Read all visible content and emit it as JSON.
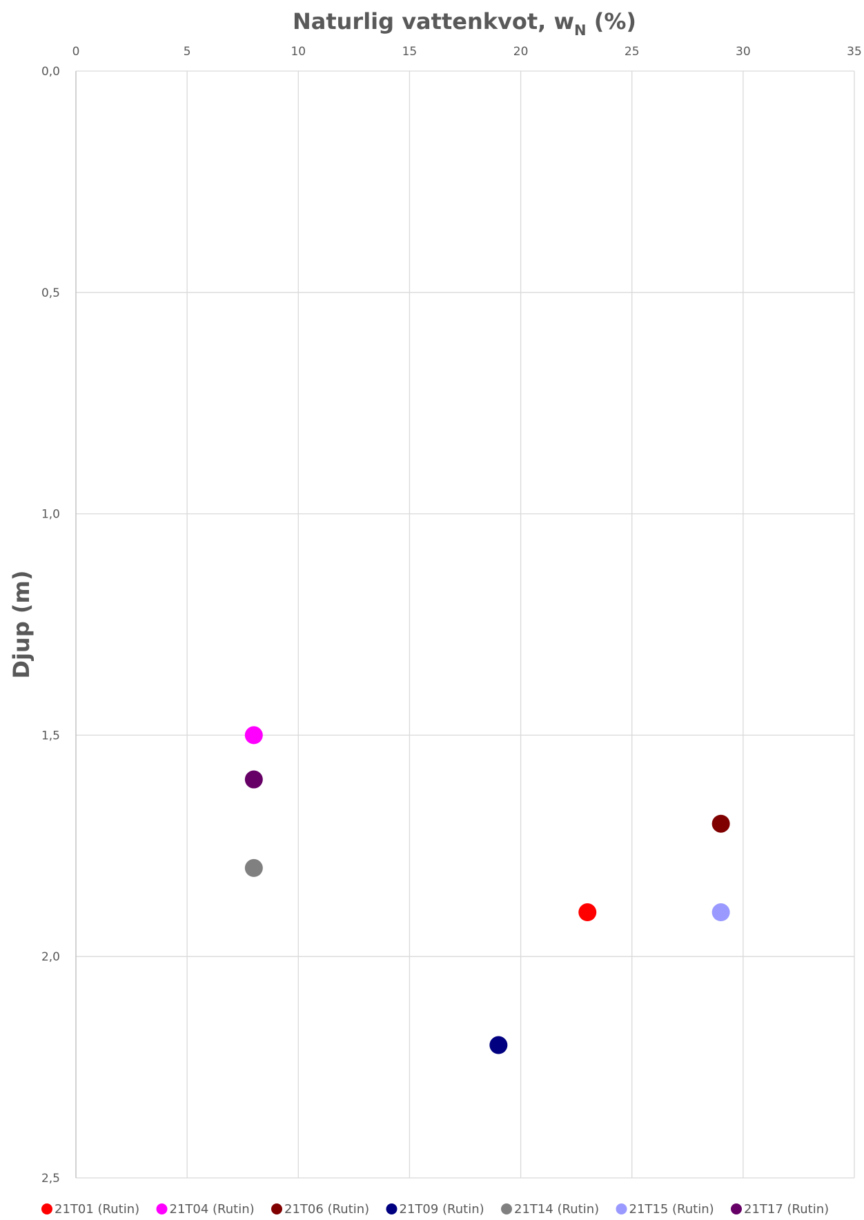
{
  "chart_data": {
    "type": "scatter",
    "title": {
      "main": "Naturlig vattenkvot, w",
      "sub": "N",
      "suffix": " (%)"
    },
    "ylabel": "Djup (m)",
    "xlim": [
      0,
      35
    ],
    "ylim": [
      0,
      2.5
    ],
    "y_inverted": true,
    "x_axis_position": "top",
    "grid": true,
    "legend_position": "bottom",
    "x_ticks": [
      "0",
      "5",
      "10",
      "15",
      "20",
      "25",
      "30",
      "35"
    ],
    "x_tick_values": [
      0,
      5,
      10,
      15,
      20,
      25,
      30,
      35
    ],
    "y_ticks": [
      "0,0",
      "0,5",
      "1,0",
      "1,5",
      "2,0",
      "2,5"
    ],
    "y_tick_values": [
      0,
      0.5,
      1.0,
      1.5,
      2.0,
      2.5
    ],
    "series": [
      {
        "name": "21T01 (Rutin)",
        "color": "#ff0000",
        "points": [
          {
            "x": 23,
            "y": 1.9
          }
        ]
      },
      {
        "name": "21T04 (Rutin)",
        "color": "#ff00ff",
        "points": [
          {
            "x": 8,
            "y": 1.5
          }
        ]
      },
      {
        "name": "21T06 (Rutin)",
        "color": "#800000",
        "points": [
          {
            "x": 29,
            "y": 1.7
          }
        ]
      },
      {
        "name": "21T09 (Rutin)",
        "color": "#000080",
        "points": [
          {
            "x": 19,
            "y": 2.2
          }
        ]
      },
      {
        "name": "21T14 (Rutin)",
        "color": "#808080",
        "points": [
          {
            "x": 8,
            "y": 1.8
          }
        ]
      },
      {
        "name": "21T15 (Rutin)",
        "color": "#9999ff",
        "points": [
          {
            "x": 29,
            "y": 1.9
          }
        ]
      },
      {
        "name": "21T17 (Rutin)",
        "color": "#660066",
        "points": [
          {
            "x": 8,
            "y": 1.6
          }
        ]
      }
    ]
  }
}
